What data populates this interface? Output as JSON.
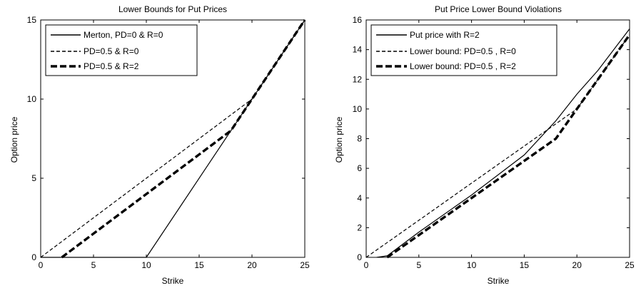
{
  "chart_data": [
    {
      "type": "line",
      "title": "Lower Bounds for Put Prices",
      "xlabel": "Strike",
      "ylabel": "Option price",
      "xlim": [
        0,
        25
      ],
      "ylim": [
        0,
        15
      ],
      "xticks": [
        "0",
        "5",
        "10",
        "15",
        "20",
        "25"
      ],
      "yticks": [
        "0",
        "5",
        "10",
        "15"
      ],
      "grid": false,
      "legend_position": "top-left",
      "series": [
        {
          "name": "Merton, PD=0 & R=0",
          "style": "solid-thin",
          "x": [
            0,
            10,
            25
          ],
          "y": [
            0,
            0,
            15
          ]
        },
        {
          "name": "PD=0.5 & R=0",
          "style": "dashed-thin",
          "x": [
            0,
            5,
            10,
            15,
            20,
            25
          ],
          "y": [
            0,
            2.5,
            5.0,
            7.5,
            10.0,
            15.0
          ]
        },
        {
          "name": "PD=0.5 & R=2",
          "style": "dashed-thick",
          "x": [
            2,
            5,
            10,
            15,
            18,
            20,
            25
          ],
          "y": [
            0,
            1.5,
            4.0,
            6.5,
            8.0,
            10.0,
            15.0
          ]
        }
      ]
    },
    {
      "type": "line",
      "title": "Put Price Lower Bound Violations",
      "xlabel": "Strike",
      "ylabel": "Option price",
      "xlim": [
        0,
        25
      ],
      "ylim": [
        0,
        16
      ],
      "xticks": [
        "0",
        "5",
        "10",
        "15",
        "20",
        "25"
      ],
      "yticks": [
        "0",
        "2",
        "4",
        "6",
        "8",
        "10",
        "12",
        "14",
        "16"
      ],
      "grid": false,
      "legend_position": "top-left",
      "series": [
        {
          "name": "Put price with R=2",
          "style": "solid-thin",
          "x": [
            1,
            2,
            5,
            10,
            15,
            18,
            20,
            22,
            25
          ],
          "y": [
            0,
            0.1,
            1.7,
            4.2,
            6.9,
            9.2,
            11.0,
            12.6,
            15.4
          ]
        },
        {
          "name": "Lower bound: PD=0.5 , R=0",
          "style": "dashed-thin",
          "x": [
            0,
            5,
            10,
            15,
            18,
            20,
            25
          ],
          "y": [
            0,
            2.5,
            5.0,
            7.5,
            9.0,
            10.0,
            15.0
          ]
        },
        {
          "name": "Lower bound: PD=0.5 , R=2",
          "style": "dashed-thick",
          "x": [
            2,
            5,
            10,
            15,
            18,
            20,
            25
          ],
          "y": [
            0,
            1.5,
            4.0,
            6.5,
            8.0,
            10.0,
            15.0
          ]
        }
      ]
    }
  ]
}
